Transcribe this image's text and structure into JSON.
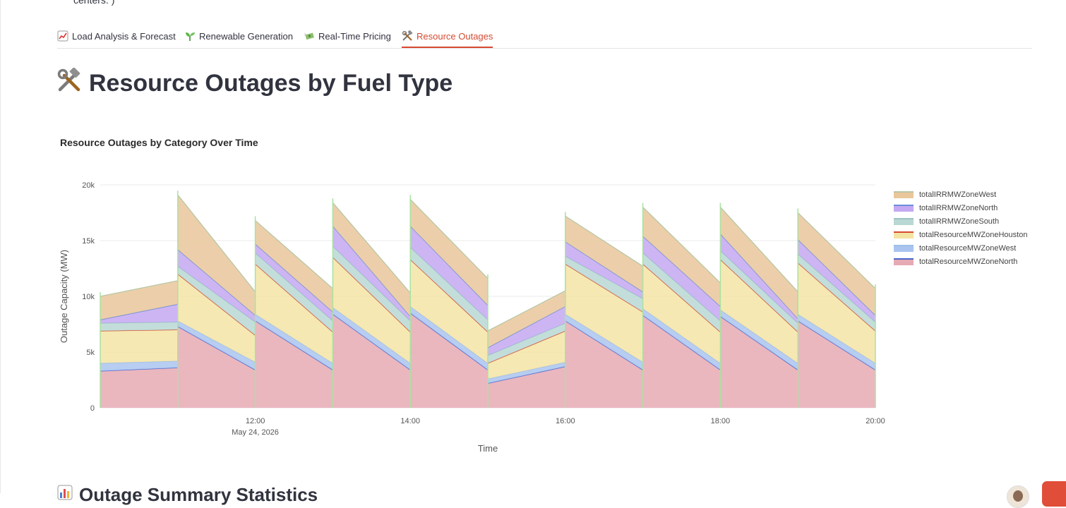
{
  "header": {
    "cut_text": "centers. )"
  },
  "tabs": [
    {
      "label": "Load Analysis & Forecast",
      "icon": "chart-up-icon",
      "active": false
    },
    {
      "label": "Renewable Generation",
      "icon": "seedling-icon",
      "active": false
    },
    {
      "label": "Real-Time Pricing",
      "icon": "money-with-wings-icon",
      "active": false
    },
    {
      "label": "Resource Outages",
      "icon": "hammer-and-wrench-icon",
      "active": true
    }
  ],
  "page": {
    "title": "Resource Outages by Fuel Type",
    "title_icon": "hammer-and-wrench-icon",
    "next_section_heading": "Outage Summary Statistics",
    "next_section_icon": "bar-chart-icon"
  },
  "chart_data": {
    "type": "area",
    "title": "Resource Outages by Category Over Time",
    "xlabel": "Time",
    "ylabel": "Outage Capacity (MW)",
    "x": [
      "10:00",
      "11:00",
      "12:00",
      "13:00",
      "14:00",
      "15:00",
      "16:00",
      "17:00",
      "18:00",
      "19:00",
      "20:00"
    ],
    "x_ticks": [
      "12:00",
      "14:00",
      "16:00",
      "18:00",
      "20:00"
    ],
    "x_tick_sub": "May 24, 2026",
    "y_ticks": [
      "0",
      "5k",
      "10k",
      "15k",
      "20k"
    ],
    "ylim": [
      0,
      20000
    ],
    "legend_position": "right",
    "series": [
      {
        "name": "totalIRRMWZoneWest",
        "color": "#e9c79b",
        "line": "#b8c7a5",
        "start": [
          2100,
          4900,
          2100,
          2100,
          2400,
          1500,
          2300,
          2600,
          2400,
          2400,
          2400
        ],
        "end": [
          2100,
          2100,
          2100,
          2100,
          2400,
          1400,
          2300,
          2100,
          2400,
          2400,
          2400
        ]
      },
      {
        "name": "totalIRRMWZoneNorth",
        "color": "#c4a8f2",
        "line": "#6b8fd8",
        "start": [
          300,
          1500,
          800,
          1800,
          1900,
          700,
          1300,
          1500,
          1500,
          1300,
          1300
        ],
        "end": [
          1600,
          600,
          800,
          400,
          1300,
          1500,
          600,
          1300,
          400,
          600,
          500
        ]
      },
      {
        "name": "totalIRRMWZoneSouth",
        "color": "#b9d8d3",
        "line": "#9dc2c6",
        "start": [
          700,
          700,
          1000,
          1000,
          1100,
          700,
          700,
          1000,
          800,
          800,
          800
        ],
        "end": [
          700,
          1200,
          1000,
          1000,
          1100,
          700,
          1200,
          1000,
          800,
          800,
          800
        ]
      },
      {
        "name": "totalResourceMWZoneHouston",
        "color": "#f4e4a4",
        "line": "#d64a31",
        "start": [
          2900,
          4200,
          4500,
          4500,
          4200,
          1400,
          4500,
          4000,
          4500,
          4600,
          4500
        ],
        "end": [
          2800,
          2400,
          2800,
          2800,
          2800,
          2800,
          4500,
          2800,
          2800,
          2900,
          2900
        ]
      },
      {
        "name": "totalResourceMWZoneWest",
        "color": "#aac4ef",
        "line": "#9fbeea",
        "start": [
          700,
          500,
          600,
          600,
          600,
          400,
          600,
          600,
          600,
          600,
          600
        ],
        "end": [
          600,
          700,
          600,
          600,
          600,
          400,
          700,
          600,
          600,
          600,
          600
        ]
      },
      {
        "name": "totalResourceMWZoneNorth",
        "color": "#e6aab4",
        "line": "#4a66cc",
        "start": [
          3300,
          7300,
          7800,
          8400,
          8500,
          2200,
          7800,
          8300,
          8200,
          7800,
          7700
        ],
        "end": [
          3600,
          3400,
          3400,
          3400,
          3400,
          3700,
          3400,
          3400,
          3400,
          3400,
          3400
        ]
      }
    ]
  }
}
